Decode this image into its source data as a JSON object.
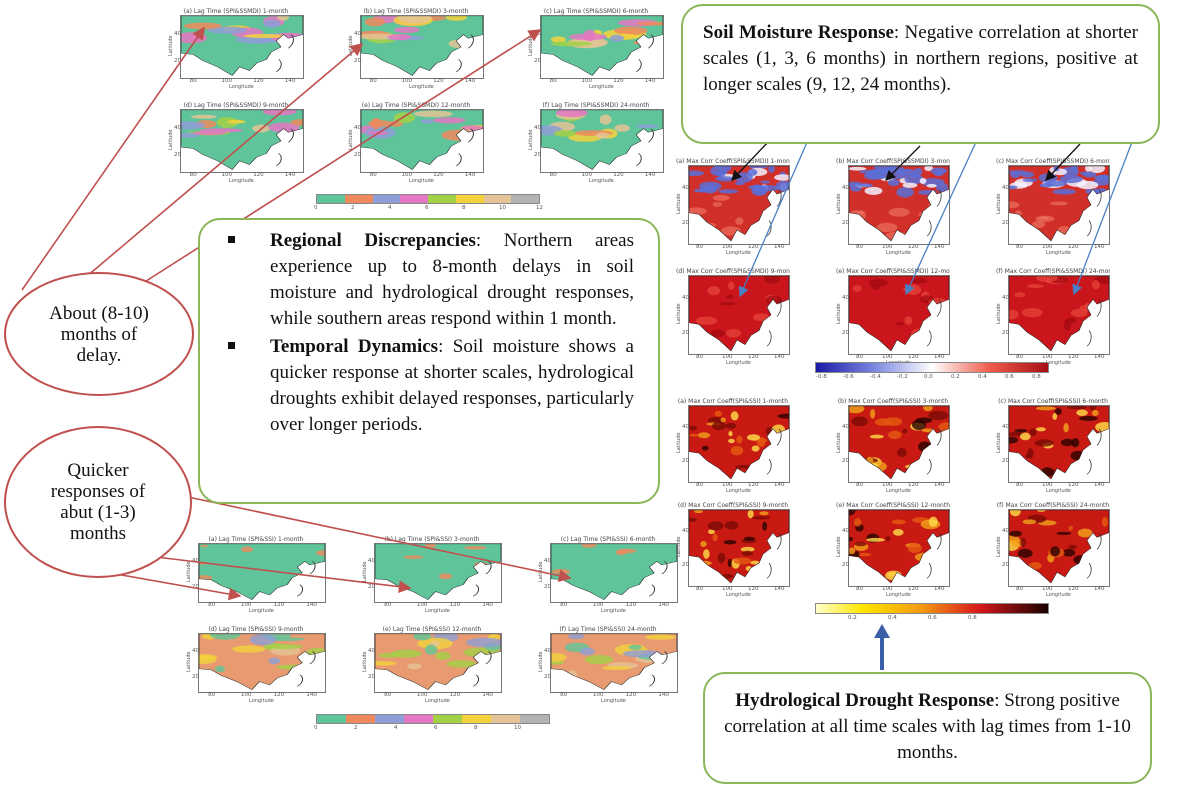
{
  "lag_panels_top": [
    {
      "title": "(a) Lag Time (SPI&SSMDI) 1-month"
    },
    {
      "title": "(b) Lag Time (SPI&SSMDI) 3-month"
    },
    {
      "title": "(c) Lag Time (SPI&SSMDI) 6-month"
    },
    {
      "title": "(d) Lag Time (SPI&SSMDI) 9-month"
    },
    {
      "title": "(e) Lag Time (SPI&SSMDI) 12-month"
    },
    {
      "title": "(f) Lag Time (SPI&SSMDI) 24-month"
    }
  ],
  "lag_panels_bottom": [
    {
      "title": "(a) Lag Time (SPI&SSI) 1-month"
    },
    {
      "title": "(b) Lag Time (SPI&SSI) 3-month"
    },
    {
      "title": "(c) Lag Time (SPI&SSI) 6-month"
    },
    {
      "title": "(d) Lag Time (SPI&SSI) 9-month"
    },
    {
      "title": "(e) Lag Time (SPI&SSI) 12-month"
    },
    {
      "title": "(f) Lag Time (SPI&SSI) 24-month"
    }
  ],
  "corr_panels_soil": [
    {
      "title": "(a) Max Corr Coeff(SPI&SSMDI) 1-month"
    },
    {
      "title": "(b) Max Corr Coeff(SPI&SSMDI) 3-month"
    },
    {
      "title": "(c) Max Corr Coeff(SPI&SSMDI) 6-month"
    },
    {
      "title": "(d) Max Corr Coeff(SPI&SSMDI) 9-month"
    },
    {
      "title": "(e) Max Corr Coeff(SPI&SSMDI) 12-month"
    },
    {
      "title": "(f) Max Corr Coeff(SPI&SSMDI) 24-month"
    }
  ],
  "corr_panels_hydro": [
    {
      "title": "(a) Max Corr Coeff(SPI&SSI) 1-month"
    },
    {
      "title": "(b) Max Corr Coeff(SPI&SSI) 3-month"
    },
    {
      "title": "(c) Max Corr Coeff(SPI&SSI) 6-month"
    },
    {
      "title": "(d) Max Corr Coeff(SPI&SSI) 9-month"
    },
    {
      "title": "(e) Max Corr Coeff(SPI&SSI) 12-month"
    },
    {
      "title": "(f) Max Corr Coeff(SPI&SSI) 24-month"
    }
  ],
  "axis": {
    "ylabel": "Latitude",
    "xlabel": "Longitude",
    "xticks": [
      "80",
      "100",
      "120",
      "140"
    ],
    "yticks": [
      "40",
      "20"
    ]
  },
  "colorbars": {
    "lag_top": {
      "ticks": [
        "0",
        "2",
        "4",
        "6",
        "8",
        "10",
        "12"
      ],
      "colors": [
        "#5fc49a",
        "#f08a5d",
        "#8d9fd6",
        "#e478c2",
        "#a3d146",
        "#f3d23c",
        "#e4c496",
        "#b3b3b3"
      ]
    },
    "lag_bottom": {
      "ticks": [
        "0",
        "2",
        "4",
        "6",
        "8",
        "10"
      ],
      "colors": [
        "#5fc49a",
        "#f08a5d",
        "#8d9fd6",
        "#e478c2",
        "#a3d146",
        "#f3d23c",
        "#e4c496",
        "#b3b3b3"
      ]
    },
    "soil_corr": {
      "ticks": [
        "-0.8",
        "-0.6",
        "-0.4",
        "-0.2",
        "0.0",
        "0.2",
        "0.4",
        "0.6",
        "0.8"
      ]
    },
    "hydro_corr": {
      "ticks": [
        "0.2",
        "0.4",
        "0.6",
        "0.8"
      ]
    }
  },
  "soil_moisture_box": {
    "heading": "Soil Moisture Response",
    "text": ": Negative correlation at shorter scales (1, 3, 6 months) in northern regions, positive at longer scales (9, 12, 24 months)."
  },
  "center_box": {
    "item1_heading": "Regional Discrepancies",
    "item1_text": ": Northern areas experience up to 8-month delays in soil moisture and hydrological drought responses, while southern areas respond within 1 month.",
    "item2_heading": "Temporal Dynamics",
    "item2_text": ": Soil moisture shows a quicker response at shorter scales, hydrological droughts exhibit delayed responses, particularly over longer periods."
  },
  "oval_delay": {
    "text": "About (8-10) months of delay."
  },
  "oval_quick": {
    "text": "Quicker responses of abut (1-3) months"
  },
  "hydro_box": {
    "heading": "Hydrological Drought Response",
    "text": ": Strong positive correlation at all time scales with lag times from 1-10 months."
  },
  "colors": {
    "box_border": "#8db55a",
    "oval_border": "#c0504d",
    "arrow_red": "#c0504d",
    "arrow_blue": "#4a7fc4",
    "arrow_navy": "#3b5ea8"
  }
}
